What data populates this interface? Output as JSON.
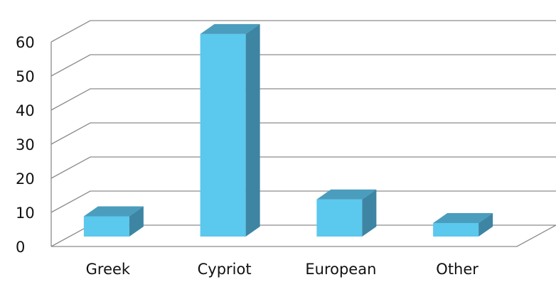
{
  "chart_data": {
    "type": "bar",
    "style": "3d-column",
    "categories": [
      "Greek",
      "Cypriot",
      "European",
      "Other"
    ],
    "values": [
      6,
      60,
      11,
      4
    ],
    "ylim": [
      0,
      60
    ],
    "yticks": [
      "0",
      "10",
      "20",
      "30",
      "40",
      "50",
      "60"
    ],
    "grid": true,
    "legend": false,
    "title": "",
    "xlabel": "",
    "ylabel": "",
    "colors": {
      "front": "#5bc8ee",
      "top": "#4a9dbd",
      "side": "#3d85a3",
      "grid": "#8c8c8c"
    }
  }
}
